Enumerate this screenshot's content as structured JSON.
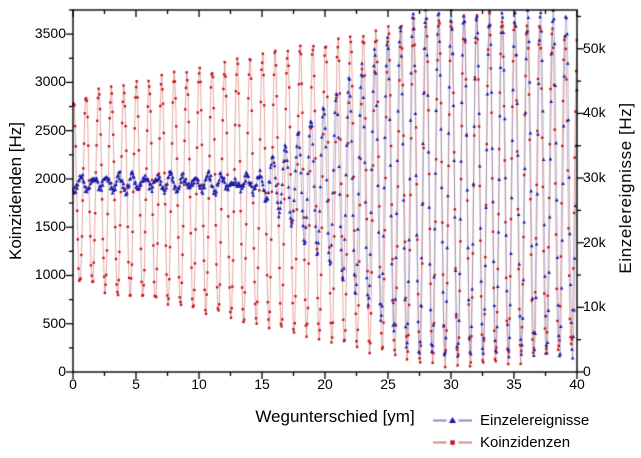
{
  "figure": {
    "background": "#ffffff",
    "frame_color": "#000000"
  },
  "chart_data": {
    "type": "scatter",
    "title": "",
    "grid": false,
    "legend_position": "bottom-right",
    "axes": {
      "x": {
        "label": "Wegunterschied [ym]",
        "range": [
          0,
          40
        ],
        "tick_values": [
          0,
          5,
          10,
          15,
          20,
          25,
          30,
          35,
          40
        ],
        "tick_labels": [
          "0",
          "5",
          "10",
          "15",
          "20",
          "25",
          "30",
          "35",
          "40"
        ],
        "minor_step": 2.5
      },
      "y_left": {
        "label": "Koinzidenden [Hz]",
        "range": [
          0,
          3750
        ],
        "tick_values": [
          0,
          500,
          1000,
          1500,
          2000,
          2500,
          3000,
          3500
        ],
        "tick_labels": [
          "0",
          "500",
          "1000",
          "1500",
          "2000",
          "2500",
          "3000",
          "3500"
        ],
        "minor_step": 250
      },
      "y_right": {
        "label": "Einzelereignisse [Hz]",
        "range": [
          0,
          56000
        ],
        "tick_values": [
          0,
          10000,
          20000,
          30000,
          40000,
          50000
        ],
        "tick_labels": [
          "0",
          "10k",
          "20k",
          "30k",
          "40k",
          "50k"
        ],
        "minor_step": 5000
      }
    },
    "legend": {
      "items": [
        {
          "label": "Einzelereignisse",
          "marker": "triangle",
          "marker_color": "#1a18a8",
          "line_color": "#8890b8"
        },
        {
          "label": "Koinzidenzen",
          "marker": "square",
          "marker_color": "#c41414",
          "line_color": "#cc8c86"
        }
      ]
    },
    "series_summary": [
      {
        "name": "Koinzidenzen",
        "axis": "left",
        "baseline_hz": 1880,
        "fringe_period_um": 1.0,
        "envelope": {
          "x_um": [
            0,
            5,
            10,
            15,
            20,
            25,
            29,
            34,
            40
          ],
          "max_hz": [
            2830,
            2975,
            3120,
            3270,
            3415,
            3560,
            3680,
            3680,
            3500
          ],
          "min_hz": [
            930,
            785,
            640,
            490,
            345,
            200,
            80,
            80,
            260
          ]
        },
        "description": "Interference fringes oscillating about ~1880 Hz; amplitude grows from ~950 Hz at x=0 to ~1800 Hz by x=29"
      },
      {
        "name": "Einzelereignisse",
        "axis": "right",
        "baseline_hz": 29200,
        "fringe_period_um": 1.01,
        "envelope": {
          "x_um": [
            0,
            5,
            10,
            14,
            16,
            20,
            24,
            27,
            40
          ],
          "max_hz": [
            30400,
            30100,
            30400,
            30600,
            33300,
            41400,
            49600,
            55700,
            55700
          ],
          "min_hz": [
            28000,
            28300,
            28000,
            27800,
            25100,
            17000,
            8800,
            2700,
            2700
          ]
        },
        "description": "Nearly flat ~29 kHz with small beating ripples up to x=14 um, then fringe amplitude grows to full ~2.5k-55.5k Hz beyond x=27 um"
      }
    ],
    "model": {
      "noise_seed": 20,
      "x_start": 0,
      "x_end": 40,
      "x_step": 0.055,
      "series": [
        {
          "name": "Koinzidenzen",
          "axis": "left",
          "period_um": 1.0,
          "phase_rad": -0.25,
          "center_hz": 1880,
          "amp_base_hz": 950,
          "amp_growth_hz": 850,
          "amp_full_x_um": 29,
          "taper_start_um": 34,
          "taper_frac": 0.1,
          "noise_hz": 55,
          "marker": "square",
          "marker_size_px": 2.4,
          "marker_color": "#c41414",
          "line_color": "rgba(198,84,78,0.5)"
        },
        {
          "name": "Einzelereignisse",
          "axis": "right",
          "period_um": 1.013,
          "phase_rad": 2.3,
          "center_hz": 29200,
          "beat_min_hz": 450,
          "beat_max_hz": 1350,
          "beat_period_um": 3.45,
          "beat_phase_rad": 0.9,
          "grow_start_um": 14,
          "grow_end_um": 27,
          "amp_full_hz": 26500,
          "noise_hz": 650,
          "marker": "triangle",
          "marker_size_px": 2.8,
          "marker_color": "#1a18a8",
          "line_color": "rgba(96,104,168,0.45)"
        }
      ]
    }
  }
}
